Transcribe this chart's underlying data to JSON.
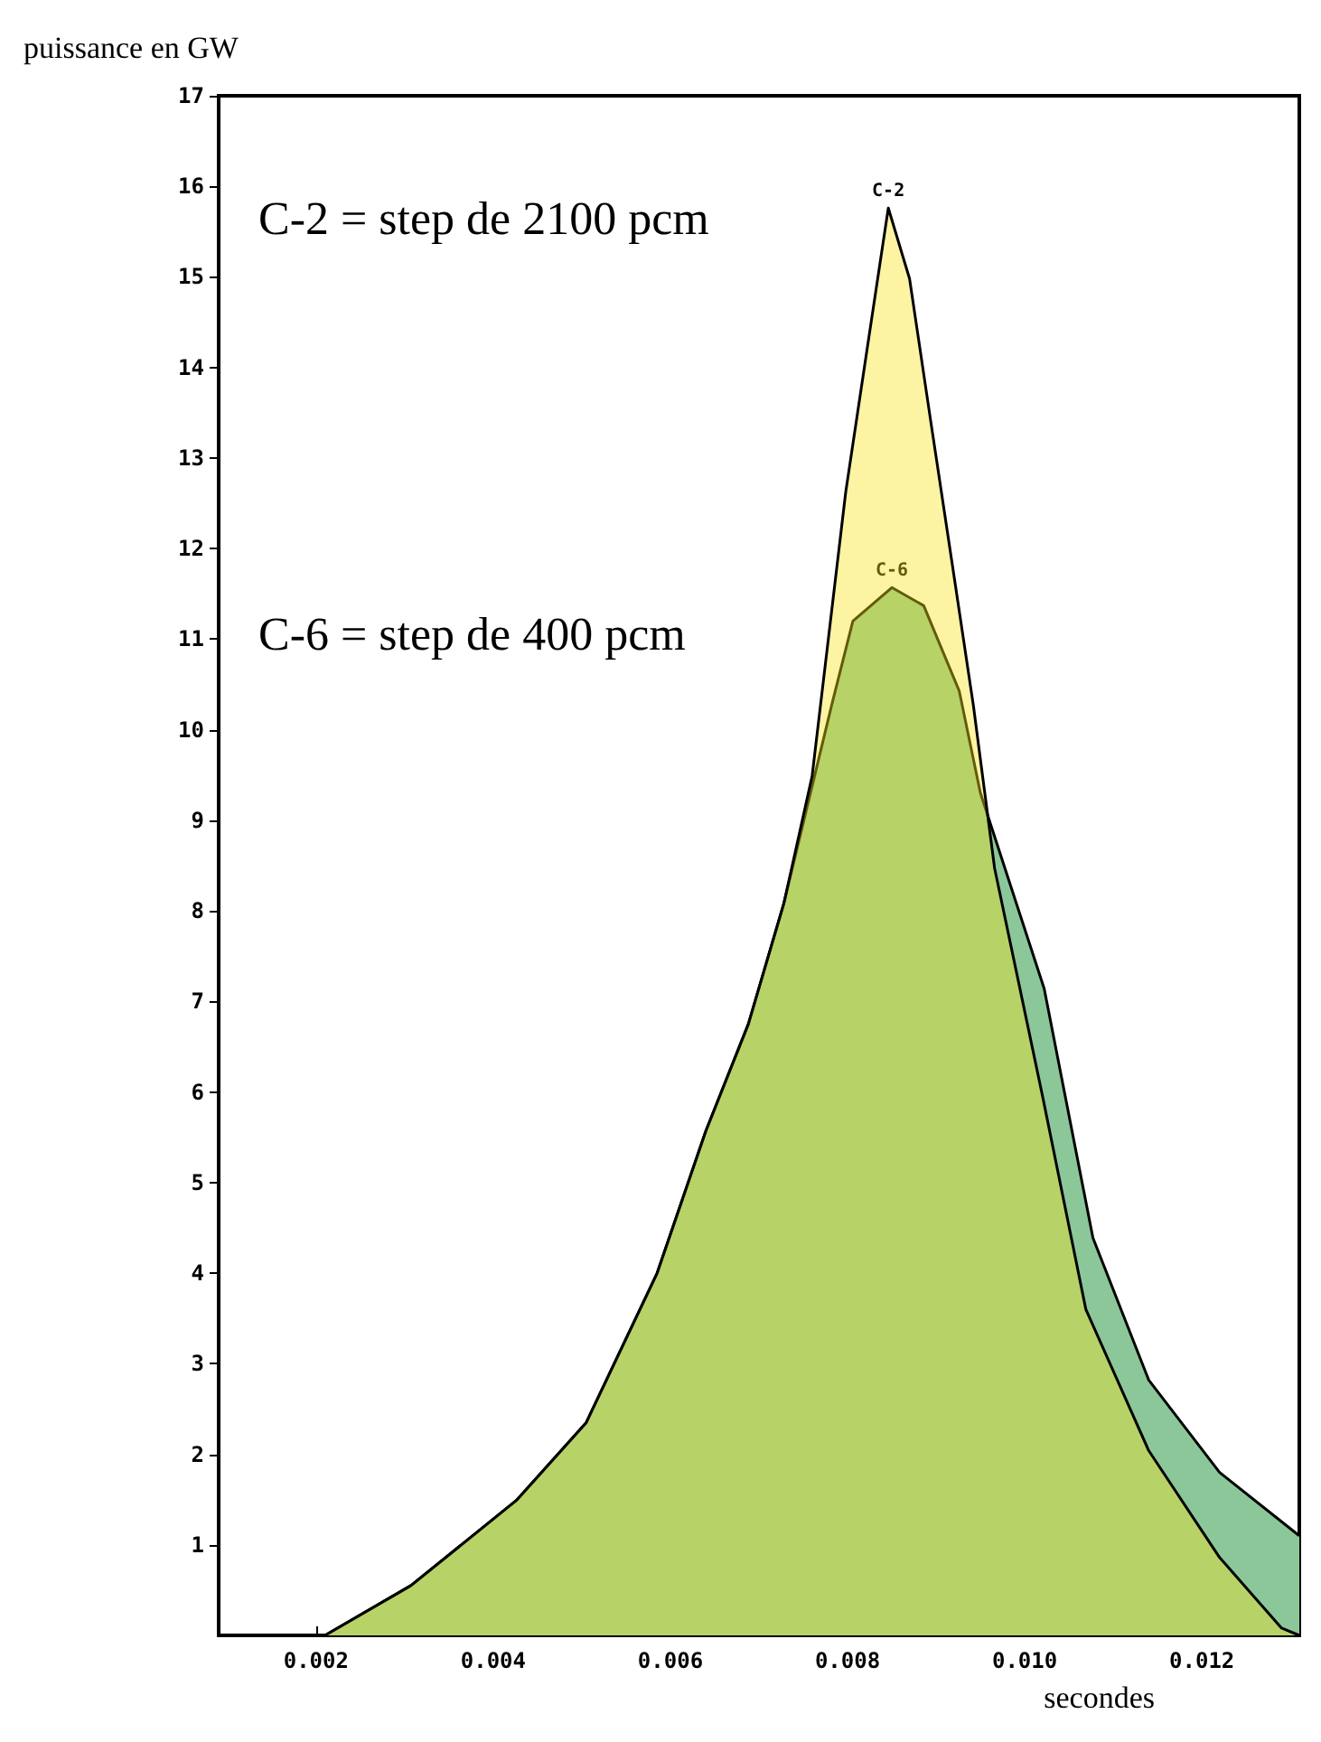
{
  "chart_data": {
    "type": "area",
    "xlabel": "secondes",
    "ylabel": "puissance en GW",
    "xlim": [
      0.0009,
      0.0131
    ],
    "ylim": [
      0,
      17
    ],
    "xticks": [
      {
        "value": 0.002,
        "label": "0.002"
      },
      {
        "value": 0.004,
        "label": "0.004"
      },
      {
        "value": 0.006,
        "label": "0.006"
      },
      {
        "value": 0.008,
        "label": "0.008"
      },
      {
        "value": 0.01,
        "label": "0.010"
      },
      {
        "value": 0.012,
        "label": "0.012"
      }
    ],
    "yticks": [
      1,
      2,
      3,
      4,
      5,
      6,
      7,
      8,
      9,
      10,
      11,
      12,
      13,
      14,
      15,
      16,
      17
    ],
    "grid": false,
    "marker": "none",
    "line_style": "solid",
    "annotations": [
      "C-2 = step de 2100 pcm",
      "C-6 = step de 400 pcm"
    ],
    "series": [
      {
        "name": "C-6",
        "color": "#8cc79a",
        "x": [
          0.0021,
          0.00307,
          0.00426,
          0.00505,
          0.00585,
          0.0064,
          0.00688,
          0.00728,
          0.00782,
          0.00806,
          0.0085,
          0.00886,
          0.00926,
          0.0095,
          0.01022,
          0.01077,
          0.0114,
          0.0122,
          0.0131
        ],
        "values": [
          0,
          0.55,
          1.49,
          2.35,
          4.0,
          5.57,
          6.75,
          8.08,
          10.27,
          11.2,
          11.57,
          11.37,
          10.43,
          9.3,
          7.14,
          4.39,
          2.82,
          1.8,
          1.1
        ]
      },
      {
        "name": "C-2",
        "color": "#f7e31a",
        "x": [
          0.0021,
          0.00307,
          0.00426,
          0.00505,
          0.00585,
          0.0064,
          0.00688,
          0.00728,
          0.0076,
          0.00798,
          0.00822,
          0.00846,
          0.0087,
          0.00894,
          0.00918,
          0.00942,
          0.00966,
          0.0102,
          0.01069,
          0.0114,
          0.0122,
          0.0129,
          0.0131
        ],
        "values": [
          0,
          0.55,
          1.49,
          2.35,
          4.0,
          5.57,
          6.75,
          8.08,
          9.49,
          12.63,
          14.2,
          15.76,
          14.98,
          13.4,
          11.84,
          10.27,
          8.47,
          5.96,
          3.6,
          2.04,
          0.86,
          0.08,
          0
        ]
      }
    ]
  }
}
